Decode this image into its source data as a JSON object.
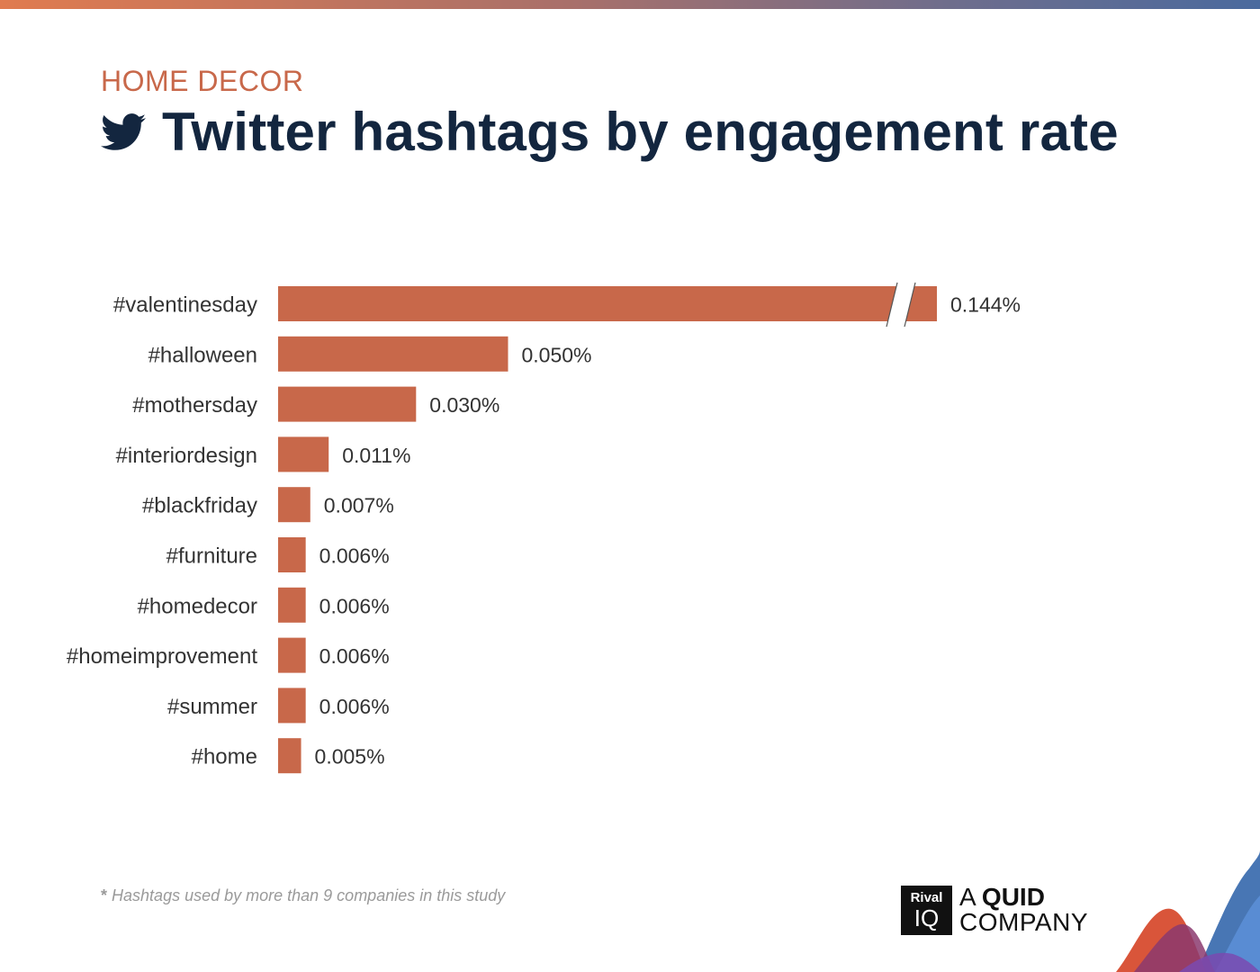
{
  "header": {
    "category": "HOME DECOR",
    "title": "Twitter hashtags by engagement rate",
    "icon": "twitter-bird-icon"
  },
  "colors": {
    "bar": "#c8684a",
    "title": "#13263f",
    "category": "#c8684a",
    "label": "#333333"
  },
  "chart_data": {
    "type": "bar",
    "orientation": "horizontal",
    "categories": [
      "#valentinesday",
      "#halloween",
      "#mothersday",
      "#interiordesign",
      "#blackfriday",
      "#furniture",
      "#homedecor",
      "#homeimprovement",
      "#summer",
      "#home"
    ],
    "values": [
      0.144,
      0.05,
      0.03,
      0.011,
      0.007,
      0.006,
      0.006,
      0.006,
      0.006,
      0.005
    ],
    "value_labels": [
      "0.144%",
      "0.050%",
      "0.030%",
      "0.011%",
      "0.007%",
      "0.006%",
      "0.006%",
      "0.006%",
      "0.006%",
      "0.005%"
    ],
    "unit": "%",
    "axis_break": "after first bar",
    "grid": false,
    "legend": "none"
  },
  "footnote": {
    "marker": "*",
    "text": "Hashtags used by more than 9 companies in this study"
  },
  "brand": {
    "box_top": "Rival",
    "box_bottom": "IQ",
    "line1_a": "A ",
    "line1_b": "QUID",
    "line2": "COMPANY"
  }
}
